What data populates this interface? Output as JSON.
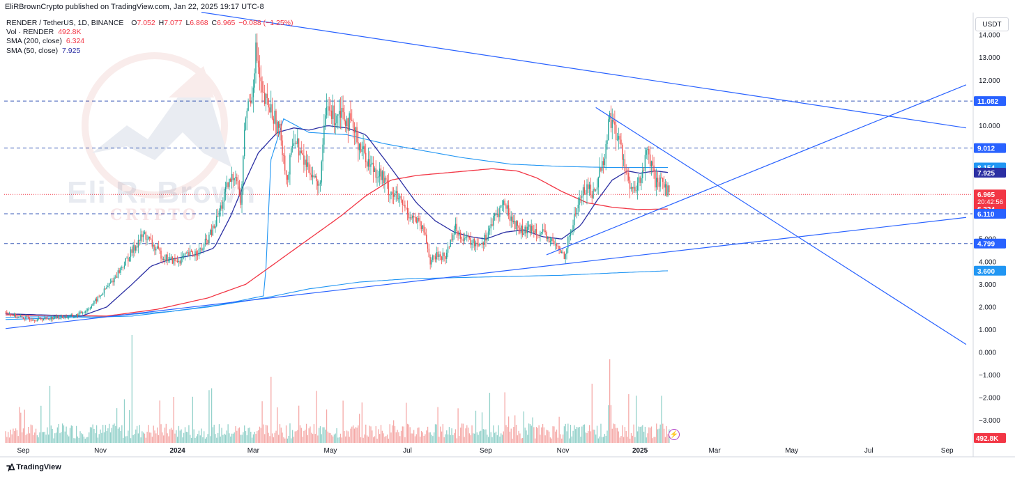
{
  "header": {
    "credit": "EliRBrownCrypto published on TradingView.com, Jan 22, 2025 19:17 UTC-8"
  },
  "legend": {
    "symbol": "RENDER / TetherUS, 1D, BINANCE",
    "ohlc": [
      {
        "k": "O",
        "v": "7.052"
      },
      {
        "k": "H",
        "v": "7.077"
      },
      {
        "k": "L",
        "v": "6.868"
      },
      {
        "k": "C",
        "v": "6.965"
      }
    ],
    "change": "−0.088 (−1.25%)",
    "vol_label": "Vol · RENDER",
    "vol_value": "492.8K",
    "sma200_label": "SMA (200, close)",
    "sma200_value": "6.324",
    "sma50_label": "SMA (50, close)",
    "sma50_value": "7.925"
  },
  "watermark": {
    "line1": "Eli R. Brown",
    "line2": "CRYPTO"
  },
  "footer": {
    "brand": "TradingView",
    "brand_icon": "tradingview-logo-icon"
  },
  "colors": {
    "up": "#26a69a",
    "down": "#ef5350",
    "trendline": "#2962ff",
    "sma200": "#f23645",
    "sma50": "#2b2fa3",
    "sma_long": "#2196f3",
    "price_line": "#f23645",
    "hline": "#3a5bb8",
    "vol_up": "#93d1ca",
    "vol_down": "#f5a9a7"
  },
  "chart_data": {
    "type": "candlestick",
    "price_unit": "USDT",
    "y_ticks": [
      14,
      13,
      12,
      10,
      9,
      8,
      7,
      6,
      5,
      4,
      3,
      2,
      1,
      0,
      -1,
      -2,
      -3
    ],
    "y_tick_labels": [
      "14.000",
      "13.000",
      "12.000",
      "10.000",
      "9.000",
      "8.000",
      "7.000",
      "6.000",
      "5.000",
      "4.000",
      "3.000",
      "2.000",
      "1.000",
      "0.000",
      "−1.000",
      "−2.000",
      "−3.000"
    ],
    "x_labels": [
      "Sep",
      "Nov",
      "2024",
      "Mar",
      "May",
      "Jul",
      "Sep",
      "Nov",
      "2025",
      "Mar",
      "May",
      "Jul",
      "Sep"
    ],
    "x_label_positions_days": [
      14,
      75,
      136,
      196,
      257,
      318,
      380,
      441,
      502,
      561,
      622,
      683,
      745
    ],
    "bold_x_labels": [
      "2024",
      "2025"
    ],
    "horizontal_levels": [
      11.082,
      9.012,
      6.11,
      4.799
    ],
    "current_price": 6.965,
    "price_badges": [
      {
        "value": 11.082,
        "label": "11.082",
        "color": "#2962ff"
      },
      {
        "value": 9.012,
        "label": "9.012",
        "color": "#2962ff"
      },
      {
        "value": 8.154,
        "label": "8.154",
        "color": "#2196f3"
      },
      {
        "value": 7.925,
        "label": "7.925",
        "color": "#2b2fa3"
      },
      {
        "value": 6.965,
        "label": "6.965",
        "color": "#f23645",
        "countdown": "20:42:56"
      },
      {
        "value": 6.324,
        "label": "6.324",
        "color": "#f23645"
      },
      {
        "value": 6.11,
        "label": "6.110",
        "color": "#2962ff"
      },
      {
        "value": 4.799,
        "label": "4.799",
        "color": "#2962ff"
      },
      {
        "value": 3.6,
        "label": "3.600",
        "color": "#2196f3"
      }
    ],
    "volume_badge": "492.8K",
    "price_path": [
      [
        0,
        1.8
      ],
      [
        10,
        1.55
      ],
      [
        25,
        1.45
      ],
      [
        40,
        1.55
      ],
      [
        55,
        1.6
      ],
      [
        65,
        1.9
      ],
      [
        75,
        2.5
      ],
      [
        85,
        3.2
      ],
      [
        95,
        4.0
      ],
      [
        105,
        4.9
      ],
      [
        110,
        5.2
      ],
      [
        118,
        4.6
      ],
      [
        125,
        4.2
      ],
      [
        135,
        4.0
      ],
      [
        145,
        4.3
      ],
      [
        155,
        4.5
      ],
      [
        165,
        5.5
      ],
      [
        175,
        7.2
      ],
      [
        182,
        8.0
      ],
      [
        186,
        6.5
      ],
      [
        190,
        10.5
      ],
      [
        195,
        11.5
      ],
      [
        198,
        13.3
      ],
      [
        203,
        11.2
      ],
      [
        210,
        10.7
      ],
      [
        218,
        9.5
      ],
      [
        223,
        7.5
      ],
      [
        228,
        9.6
      ],
      [
        235,
        8.5
      ],
      [
        242,
        8.0
      ],
      [
        248,
        7.2
      ],
      [
        254,
        10.8
      ],
      [
        260,
        10.4
      ],
      [
        265,
        10.8
      ],
      [
        272,
        10.1
      ],
      [
        280,
        9.2
      ],
      [
        288,
        8.3
      ],
      [
        296,
        7.9
      ],
      [
        303,
        7.2
      ],
      [
        310,
        6.8
      ],
      [
        318,
        6.2
      ],
      [
        325,
        5.8
      ],
      [
        332,
        5.2
      ],
      [
        336,
        4.0
      ],
      [
        342,
        4.3
      ],
      [
        348,
        4.2
      ],
      [
        355,
        5.5
      ],
      [
        362,
        5.1
      ],
      [
        370,
        4.8
      ],
      [
        378,
        4.9
      ],
      [
        386,
        5.8
      ],
      [
        394,
        6.6
      ],
      [
        402,
        5.7
      ],
      [
        410,
        5.3
      ],
      [
        418,
        5.5
      ],
      [
        425,
        5.2
      ],
      [
        432,
        4.9
      ],
      [
        438,
        4.5
      ],
      [
        442,
        4.3
      ],
      [
        448,
        5.5
      ],
      [
        454,
        6.8
      ],
      [
        460,
        7.3
      ],
      [
        466,
        7.0
      ],
      [
        470,
        8.0
      ],
      [
        474,
        8.6
      ],
      [
        478,
        10.5
      ],
      [
        482,
        9.8
      ],
      [
        486,
        9.2
      ],
      [
        490,
        8.3
      ],
      [
        494,
        7.2
      ],
      [
        498,
        7.0
      ],
      [
        503,
        7.8
      ],
      [
        508,
        8.8
      ],
      [
        512,
        7.9
      ],
      [
        516,
        7.2
      ],
      [
        520,
        7.6
      ],
      [
        525,
        7.0
      ]
    ],
    "sma50_path": [
      [
        0,
        1.7
      ],
      [
        60,
        1.6
      ],
      [
        80,
        2.0
      ],
      [
        100,
        3.0
      ],
      [
        115,
        3.8
      ],
      [
        130,
        4.1
      ],
      [
        150,
        4.3
      ],
      [
        165,
        4.6
      ],
      [
        178,
        6.0
      ],
      [
        190,
        7.6
      ],
      [
        200,
        8.8
      ],
      [
        215,
        9.7
      ],
      [
        228,
        9.9
      ],
      [
        240,
        9.8
      ],
      [
        255,
        10.0
      ],
      [
        270,
        9.9
      ],
      [
        285,
        9.6
      ],
      [
        300,
        8.5
      ],
      [
        312,
        7.6
      ],
      [
        325,
        6.6
      ],
      [
        340,
        5.8
      ],
      [
        355,
        5.3
      ],
      [
        368,
        5.1
      ],
      [
        380,
        5.0
      ],
      [
        395,
        5.3
      ],
      [
        410,
        5.4
      ],
      [
        425,
        5.1
      ],
      [
        440,
        5.0
      ],
      [
        455,
        5.6
      ],
      [
        468,
        6.7
      ],
      [
        480,
        7.6
      ],
      [
        492,
        8.0
      ],
      [
        502,
        7.9
      ],
      [
        514,
        8.0
      ],
      [
        525,
        7.93
      ]
    ],
    "sma200_path": [
      [
        0,
        1.65
      ],
      [
        80,
        1.6
      ],
      [
        120,
        1.9
      ],
      [
        160,
        2.4
      ],
      [
        190,
        3.0
      ],
      [
        215,
        4.0
      ],
      [
        240,
        5.0
      ],
      [
        265,
        6.0
      ],
      [
        285,
        6.9
      ],
      [
        305,
        7.6
      ],
      [
        325,
        7.8
      ],
      [
        345,
        7.9
      ],
      [
        365,
        8.0
      ],
      [
        385,
        8.1
      ],
      [
        405,
        8.0
      ],
      [
        420,
        7.7
      ],
      [
        440,
        7.1
      ],
      [
        460,
        6.6
      ],
      [
        480,
        6.4
      ],
      [
        500,
        6.3
      ],
      [
        525,
        6.324
      ]
    ],
    "sma_long_path": [
      [
        0,
        1.55
      ],
      [
        80,
        1.6
      ],
      [
        130,
        1.8
      ],
      [
        170,
        2.1
      ],
      [
        205,
        2.5
      ],
      [
        210,
        8.5
      ],
      [
        220,
        10.3
      ],
      [
        240,
        9.7
      ],
      [
        270,
        9.6
      ],
      [
        300,
        9.2
      ],
      [
        330,
        8.9
      ],
      [
        360,
        8.6
      ],
      [
        400,
        8.3
      ],
      [
        440,
        8.2
      ],
      [
        480,
        8.15
      ],
      [
        525,
        8.154
      ]
    ],
    "sma_long_lower_path": [
      [
        0,
        1.45
      ],
      [
        100,
        1.6
      ],
      [
        160,
        2.0
      ],
      [
        205,
        2.4
      ],
      [
        240,
        2.8
      ],
      [
        280,
        3.1
      ],
      [
        320,
        3.25
      ],
      [
        360,
        3.3
      ],
      [
        400,
        3.35
      ],
      [
        440,
        3.4
      ],
      [
        480,
        3.5
      ],
      [
        525,
        3.6
      ]
    ],
    "trendlines": [
      {
        "from": [
          155,
          15.0
        ],
        "to": [
          760,
          9.9
        ]
      },
      {
        "from": [
          0,
          1.05
        ],
        "to": [
          760,
          5.95
        ]
      },
      {
        "from": [
          428,
          4.3
        ],
        "to": [
          760,
          11.8
        ]
      },
      {
        "from": [
          467,
          10.8
        ],
        "to": [
          760,
          0.35
        ]
      },
      {
        "from": [
          200,
          12.0
        ],
        "to": [
          300,
          11.5
        ]
      }
    ]
  }
}
